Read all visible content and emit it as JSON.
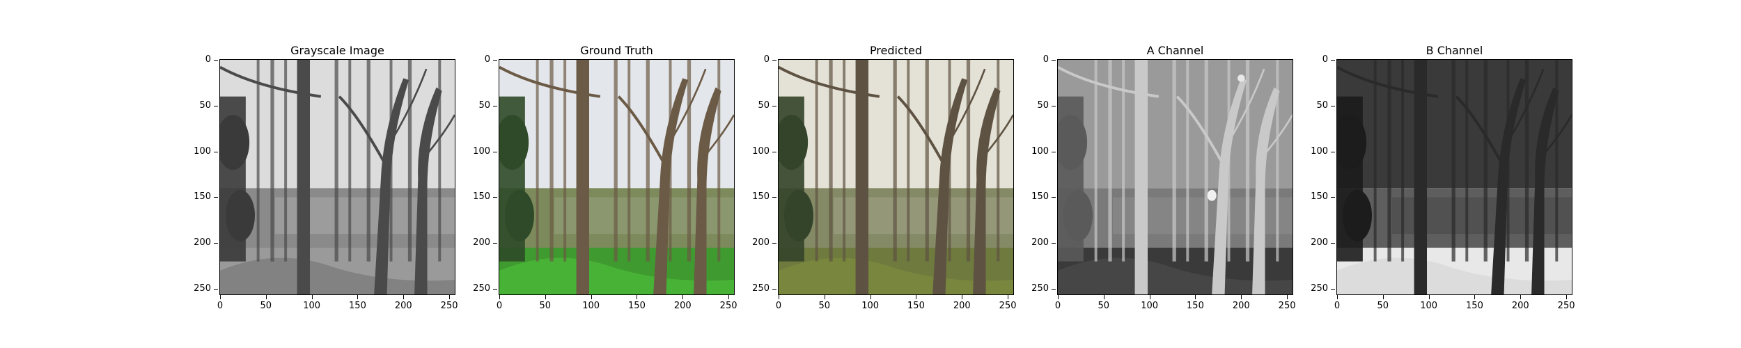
{
  "panels": [
    {
      "id": "grayscale",
      "title": "Grayscale Image",
      "mode": "gray"
    },
    {
      "id": "truth",
      "title": "Ground Truth",
      "mode": "color"
    },
    {
      "id": "pred",
      "title": "Predicted",
      "mode": "pred"
    },
    {
      "id": "achannel",
      "title": "A Channel",
      "mode": "a"
    },
    {
      "id": "bchannel",
      "title": "B Channel",
      "mode": "b"
    }
  ],
  "axis": {
    "y_ticks": [
      "0",
      "50",
      "100",
      "150",
      "200",
      "250"
    ],
    "x_ticks": [
      "0",
      "50",
      "100",
      "150",
      "200",
      "250"
    ],
    "y_values": [
      0,
      50,
      100,
      150,
      200,
      250
    ],
    "x_values": [
      0,
      50,
      100,
      150,
      200,
      250
    ],
    "range": [
      0,
      256
    ]
  }
}
